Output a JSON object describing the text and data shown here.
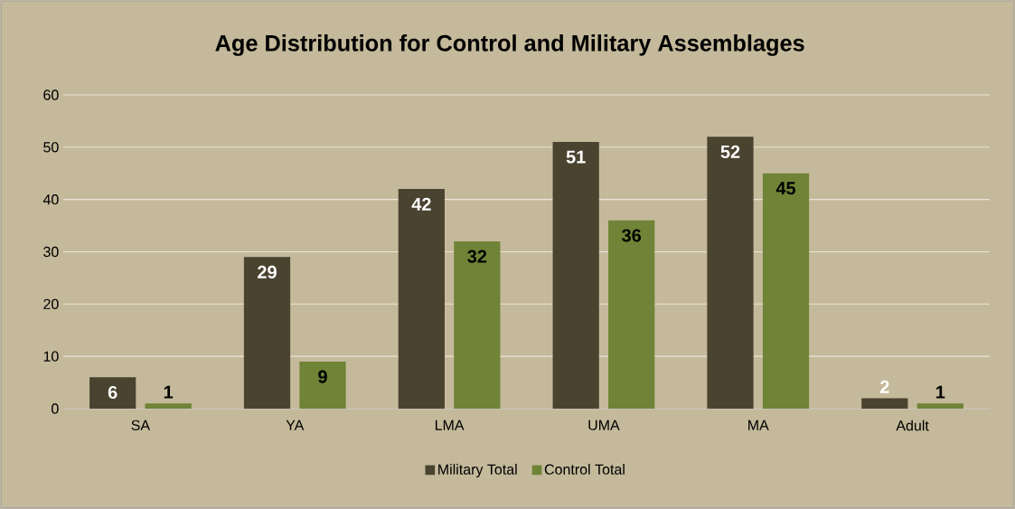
{
  "chart_data": {
    "type": "bar",
    "title": "Age Distribution for Control and Military Assemblages",
    "categories": [
      "SA",
      "YA",
      "LMA",
      "UMA",
      "MA",
      "Adult"
    ],
    "series": [
      {
        "name": "Military Total",
        "color": "#4a4330",
        "values": [
          6,
          29,
          42,
          51,
          52,
          2
        ]
      },
      {
        "name": "Control Total",
        "color": "#6f8436",
        "values": [
          1,
          9,
          32,
          36,
          45,
          1
        ]
      }
    ],
    "ylim": [
      0,
      60
    ],
    "yticks": [
      0,
      10,
      20,
      30,
      40,
      50,
      60
    ],
    "grid": "y",
    "legend": "bottom",
    "data_labels": true
  }
}
